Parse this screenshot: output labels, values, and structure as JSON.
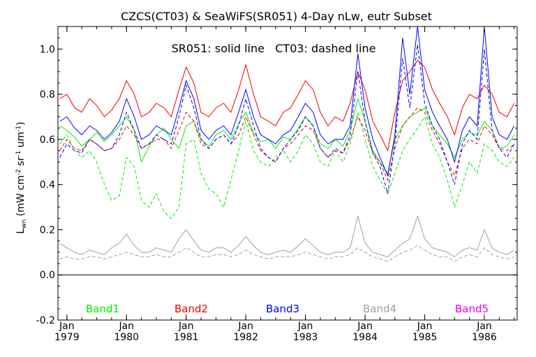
{
  "chart_data": {
    "type": "line",
    "title": "CZCS(CT03) & SeaWiFS(SR051) 4-Day nLw, eutr Subset",
    "subtitle": "SR051: solid line   CT03: dashed line",
    "ylabel_main": "L",
    "ylabel_sub": "wn",
    "ylabel_rest": " (mW cm",
    "ylabel_exp1": "-2",
    "ylabel_mid": " sr",
    "ylabel_exp2": "-1",
    "ylabel_end": " um",
    "ylabel_exp3": "-1",
    "ylabel_close": ")",
    "xlabel": "",
    "xlim": [
      1978.85,
      1986.55
    ],
    "ylim": [
      -0.2,
      1.1
    ],
    "yticks": [
      "-0.2",
      "0.0",
      "0.2",
      "0.4",
      "0.6",
      "0.8",
      "1.0"
    ],
    "ytick_values": [
      -0.2,
      0.0,
      0.2,
      0.4,
      0.6,
      0.8,
      1.0
    ],
    "xticks_month": [
      "Jan",
      "Jan",
      "Jan",
      "Jan",
      "Jan",
      "Jan",
      "Jan",
      "Jan"
    ],
    "xticks_year": [
      "1979",
      "1980",
      "1981",
      "1982",
      "1983",
      "1984",
      "1985",
      "1986"
    ],
    "xtick_values": [
      1979,
      1980,
      1981,
      1982,
      1983,
      1984,
      1985,
      1986
    ],
    "zero_line": 0.0,
    "legend": [
      {
        "name": "Band1",
        "color": "#00ee00"
      },
      {
        "name": "Band2",
        "color": "#ee0000"
      },
      {
        "name": "Band3",
        "color": "#0000ee"
      },
      {
        "name": "Band4",
        "color": "#a0a0a0"
      },
      {
        "name": "Band5",
        "color": "#ee00ee"
      }
    ],
    "series": [
      {
        "band": "Band1",
        "style": "solid",
        "color": "#00ee00",
        "x": [
          1978.88,
          1979.0,
          1979.13,
          1979.25,
          1979.38,
          1979.5,
          1979.63,
          1979.75,
          1979.88,
          1980.0,
          1980.13,
          1980.25,
          1980.38,
          1980.5,
          1980.63,
          1980.75,
          1980.88,
          1981.0,
          1981.13,
          1981.25,
          1981.38,
          1981.5,
          1981.63,
          1981.75,
          1981.88,
          1982.0,
          1982.13,
          1982.25,
          1982.38,
          1982.5,
          1982.63,
          1982.75,
          1982.88,
          1983.0,
          1983.13,
          1983.25,
          1983.38,
          1983.5,
          1983.63,
          1983.75,
          1983.88,
          1984.0,
          1984.13,
          1984.25,
          1984.38,
          1984.5,
          1984.63,
          1984.75,
          1984.88,
          1985.0,
          1985.13,
          1985.25,
          1985.38,
          1985.5,
          1985.63,
          1985.75,
          1985.88,
          1986.0,
          1986.13,
          1986.25,
          1986.38,
          1986.5
        ],
        "y": [
          0.66,
          0.64,
          0.61,
          0.57,
          0.6,
          0.63,
          0.59,
          0.62,
          0.66,
          0.7,
          0.64,
          0.5,
          0.57,
          0.62,
          0.65,
          0.6,
          0.56,
          0.66,
          0.68,
          0.6,
          0.57,
          0.62,
          0.64,
          0.6,
          0.67,
          0.72,
          0.63,
          0.59,
          0.6,
          0.56,
          0.61,
          0.6,
          0.65,
          0.7,
          0.66,
          0.58,
          0.56,
          0.6,
          0.57,
          0.64,
          0.78,
          0.68,
          0.55,
          0.5,
          0.45,
          0.6,
          0.66,
          0.7,
          0.72,
          0.74,
          0.66,
          0.62,
          0.58,
          0.52,
          0.6,
          0.63,
          0.62,
          0.68,
          0.64,
          0.56,
          0.57,
          0.62
        ]
      },
      {
        "band": "Band1",
        "style": "dashed",
        "color": "#00ee00",
        "x": [
          1978.88,
          1979.0,
          1979.13,
          1979.25,
          1979.38,
          1979.5,
          1979.63,
          1979.75,
          1979.88,
          1980.0,
          1980.13,
          1980.25,
          1980.38,
          1980.5,
          1980.63,
          1980.75,
          1980.88,
          1981.0,
          1981.13,
          1981.25,
          1981.38,
          1981.5,
          1981.63,
          1981.75,
          1981.88,
          1982.0,
          1982.13,
          1982.25,
          1982.38,
          1982.5,
          1982.63,
          1982.75,
          1982.88,
          1983.0,
          1983.13,
          1983.25,
          1983.38,
          1983.5,
          1983.63,
          1983.75,
          1983.88,
          1984.0,
          1984.13,
          1984.25,
          1984.38,
          1984.5,
          1984.63,
          1984.75,
          1984.88,
          1985.0,
          1985.13,
          1985.25,
          1985.38,
          1985.5,
          1985.63,
          1985.75,
          1985.88,
          1986.0,
          1986.13,
          1986.25,
          1986.38,
          1986.5
        ],
        "y": [
          0.58,
          0.62,
          0.55,
          0.52,
          0.55,
          0.5,
          0.4,
          0.33,
          0.35,
          0.52,
          0.48,
          0.33,
          0.3,
          0.36,
          0.28,
          0.25,
          0.3,
          0.58,
          0.6,
          0.45,
          0.38,
          0.36,
          0.3,
          0.42,
          0.55,
          0.68,
          0.55,
          0.5,
          0.48,
          0.52,
          0.55,
          0.5,
          0.55,
          0.62,
          0.58,
          0.5,
          0.48,
          0.55,
          0.5,
          0.58,
          0.72,
          0.6,
          0.48,
          0.42,
          0.36,
          0.45,
          0.55,
          0.6,
          0.65,
          0.7,
          0.58,
          0.52,
          0.42,
          0.3,
          0.4,
          0.5,
          0.45,
          0.58,
          0.55,
          0.5,
          0.48,
          0.52
        ]
      },
      {
        "band": "Band2",
        "style": "solid",
        "color": "#ee0000",
        "x": [
          1978.88,
          1979.0,
          1979.13,
          1979.25,
          1979.38,
          1979.5,
          1979.63,
          1979.75,
          1979.88,
          1980.0,
          1980.13,
          1980.25,
          1980.38,
          1980.5,
          1980.63,
          1980.75,
          1980.88,
          1981.0,
          1981.13,
          1981.25,
          1981.38,
          1981.5,
          1981.63,
          1981.75,
          1981.88,
          1982.0,
          1982.13,
          1982.25,
          1982.38,
          1982.5,
          1982.63,
          1982.75,
          1982.88,
          1983.0,
          1983.13,
          1983.25,
          1983.38,
          1983.5,
          1983.63,
          1983.75,
          1983.88,
          1984.0,
          1984.13,
          1984.25,
          1984.38,
          1984.5,
          1984.63,
          1984.75,
          1984.88,
          1985.0,
          1985.13,
          1985.25,
          1985.38,
          1985.5,
          1985.63,
          1985.75,
          1985.88,
          1986.0,
          1986.13,
          1986.25,
          1986.38,
          1986.5
        ],
        "y": [
          0.78,
          0.8,
          0.74,
          0.72,
          0.78,
          0.75,
          0.7,
          0.73,
          0.78,
          0.86,
          0.8,
          0.7,
          0.72,
          0.76,
          0.74,
          0.7,
          0.82,
          0.92,
          0.85,
          0.72,
          0.7,
          0.74,
          0.76,
          0.72,
          0.82,
          0.93,
          0.8,
          0.7,
          0.68,
          0.66,
          0.72,
          0.74,
          0.8,
          0.86,
          0.82,
          0.72,
          0.66,
          0.7,
          0.68,
          0.76,
          0.9,
          0.82,
          0.68,
          0.62,
          0.55,
          0.72,
          0.86,
          0.9,
          0.95,
          0.92,
          0.82,
          0.76,
          0.7,
          0.62,
          0.74,
          0.8,
          0.78,
          0.84,
          0.8,
          0.72,
          0.7,
          0.76
        ]
      },
      {
        "band": "Band2",
        "style": "dashed",
        "color": "#ee0000",
        "x": [
          1978.88,
          1979.0,
          1979.13,
          1979.25,
          1979.38,
          1979.5,
          1979.63,
          1979.75,
          1979.88,
          1980.0,
          1980.13,
          1980.25,
          1980.38,
          1980.5,
          1980.63,
          1980.75,
          1980.88,
          1981.0,
          1981.13,
          1981.25,
          1981.38,
          1981.5,
          1981.63,
          1981.75,
          1981.88,
          1982.0,
          1982.13,
          1982.25,
          1982.38,
          1982.5,
          1982.63,
          1982.75,
          1982.88,
          1983.0,
          1983.13,
          1983.25,
          1983.38,
          1983.5,
          1983.63,
          1983.75,
          1983.88,
          1984.0,
          1984.13,
          1984.25,
          1984.38,
          1984.5,
          1984.63,
          1984.75,
          1984.88,
          1985.0,
          1985.13,
          1985.25,
          1985.38,
          1985.5,
          1985.63,
          1985.75,
          1985.88,
          1986.0,
          1986.13,
          1986.25,
          1986.38,
          1986.5
        ],
        "y": [
          0.55,
          0.6,
          0.56,
          0.55,
          0.6,
          0.58,
          0.55,
          0.56,
          0.6,
          0.66,
          0.62,
          0.56,
          0.58,
          0.6,
          0.6,
          0.56,
          0.64,
          0.72,
          0.68,
          0.58,
          0.56,
          0.6,
          0.62,
          0.58,
          0.62,
          0.7,
          0.62,
          0.55,
          0.52,
          0.5,
          0.56,
          0.58,
          0.62,
          0.66,
          0.64,
          0.56,
          0.52,
          0.55,
          0.54,
          0.6,
          0.7,
          0.64,
          0.54,
          0.5,
          0.42,
          0.56,
          0.66,
          0.7,
          0.74,
          0.72,
          0.64,
          0.58,
          0.5,
          0.44,
          0.56,
          0.6,
          0.58,
          0.66,
          0.62,
          0.56,
          0.55,
          0.58
        ]
      },
      {
        "band": "Band3",
        "style": "solid",
        "color": "#0000ee",
        "x": [
          1978.88,
          1979.0,
          1979.13,
          1979.25,
          1979.38,
          1979.5,
          1979.63,
          1979.75,
          1979.88,
          1980.0,
          1980.13,
          1980.25,
          1980.38,
          1980.5,
          1980.63,
          1980.75,
          1980.88,
          1981.0,
          1981.13,
          1981.25,
          1981.38,
          1981.5,
          1981.63,
          1981.75,
          1981.88,
          1982.0,
          1982.13,
          1982.25,
          1982.38,
          1982.5,
          1982.63,
          1982.75,
          1982.88,
          1983.0,
          1983.13,
          1983.25,
          1983.38,
          1983.5,
          1983.63,
          1983.75,
          1983.88,
          1984.0,
          1984.13,
          1984.25,
          1984.38,
          1984.5,
          1984.63,
          1984.75,
          1984.88,
          1985.0,
          1985.13,
          1985.25,
          1985.38,
          1985.5,
          1985.63,
          1985.75,
          1985.88,
          1986.0,
          1986.13,
          1986.25,
          1986.38,
          1986.5
        ],
        "y": [
          0.68,
          0.7,
          0.65,
          0.62,
          0.66,
          0.64,
          0.6,
          0.63,
          0.68,
          0.78,
          0.7,
          0.6,
          0.62,
          0.66,
          0.64,
          0.62,
          0.74,
          0.86,
          0.78,
          0.64,
          0.6,
          0.64,
          0.66,
          0.62,
          0.72,
          0.82,
          0.7,
          0.62,
          0.6,
          0.58,
          0.62,
          0.64,
          0.7,
          0.76,
          0.72,
          0.62,
          0.58,
          0.6,
          0.6,
          0.66,
          0.98,
          0.74,
          0.6,
          0.52,
          0.44,
          0.62,
          1.05,
          0.8,
          1.1,
          0.82,
          0.72,
          0.66,
          0.6,
          0.5,
          0.64,
          0.7,
          0.66,
          1.1,
          0.7,
          0.62,
          0.6,
          0.66
        ]
      },
      {
        "band": "Band3",
        "style": "dashed",
        "color": "#0000ee",
        "x": [
          1978.88,
          1979.0,
          1979.13,
          1979.25,
          1979.38,
          1979.5,
          1979.63,
          1979.75,
          1979.88,
          1980.0,
          1980.13,
          1980.25,
          1980.38,
          1980.5,
          1980.63,
          1980.75,
          1980.88,
          1981.0,
          1981.13,
          1981.25,
          1981.38,
          1981.5,
          1981.63,
          1981.75,
          1981.88,
          1982.0,
          1982.13,
          1982.25,
          1982.38,
          1982.5,
          1982.63,
          1982.75,
          1982.88,
          1983.0,
          1983.13,
          1983.25,
          1983.38,
          1983.5,
          1983.63,
          1983.75,
          1983.88,
          1984.0,
          1984.13,
          1984.25,
          1984.38,
          1984.5,
          1984.63,
          1984.75,
          1984.88,
          1985.0,
          1985.13,
          1985.25,
          1985.38,
          1985.5,
          1985.63,
          1985.75,
          1985.88,
          1986.0,
          1986.13,
          1986.25,
          1986.38,
          1986.5
        ],
        "y": [
          0.52,
          0.58,
          0.55,
          0.54,
          0.6,
          0.58,
          0.55,
          0.56,
          0.62,
          0.72,
          0.64,
          0.56,
          0.58,
          0.62,
          0.6,
          0.58,
          0.7,
          0.84,
          0.74,
          0.6,
          0.56,
          0.6,
          0.62,
          0.58,
          0.66,
          0.78,
          0.66,
          0.56,
          0.52,
          0.5,
          0.56,
          0.6,
          0.64,
          0.7,
          0.66,
          0.56,
          0.52,
          0.56,
          0.54,
          0.62,
          0.9,
          0.68,
          0.54,
          0.48,
          0.36,
          0.58,
          0.96,
          0.74,
          1.02,
          0.76,
          0.66,
          0.6,
          0.5,
          0.4,
          0.58,
          0.64,
          0.6,
          1.0,
          0.64,
          0.56,
          0.52,
          0.58
        ]
      },
      {
        "band": "Band4",
        "style": "solid",
        "color": "#a0a0a0",
        "x": [
          1978.88,
          1979.0,
          1979.13,
          1979.25,
          1979.38,
          1979.5,
          1979.63,
          1979.75,
          1979.88,
          1980.0,
          1980.13,
          1980.25,
          1980.38,
          1980.5,
          1980.63,
          1980.75,
          1980.88,
          1981.0,
          1981.13,
          1981.25,
          1981.38,
          1981.5,
          1981.63,
          1981.75,
          1981.88,
          1982.0,
          1982.13,
          1982.25,
          1982.38,
          1982.5,
          1982.63,
          1982.75,
          1982.88,
          1983.0,
          1983.13,
          1983.25,
          1983.38,
          1983.5,
          1983.63,
          1983.75,
          1983.88,
          1984.0,
          1984.13,
          1984.25,
          1984.38,
          1984.5,
          1984.63,
          1984.75,
          1984.88,
          1985.0,
          1985.13,
          1985.25,
          1985.38,
          1985.5,
          1985.63,
          1985.75,
          1985.88,
          1986.0,
          1986.13,
          1986.25,
          1986.38,
          1986.5
        ],
        "y": [
          0.14,
          0.12,
          0.1,
          0.09,
          0.11,
          0.1,
          0.09,
          0.12,
          0.14,
          0.18,
          0.13,
          0.1,
          0.1,
          0.12,
          0.11,
          0.1,
          0.16,
          0.2,
          0.15,
          0.11,
          0.1,
          0.12,
          0.12,
          0.1,
          0.13,
          0.17,
          0.13,
          0.1,
          0.09,
          0.1,
          0.11,
          0.1,
          0.13,
          0.16,
          0.13,
          0.1,
          0.09,
          0.1,
          0.1,
          0.12,
          0.26,
          0.14,
          0.1,
          0.09,
          0.08,
          0.11,
          0.14,
          0.16,
          0.26,
          0.16,
          0.12,
          0.11,
          0.1,
          0.08,
          0.11,
          0.12,
          0.11,
          0.2,
          0.12,
          0.1,
          0.09,
          0.11
        ]
      },
      {
        "band": "Band4",
        "style": "dashed",
        "color": "#a0a0a0",
        "x": [
          1978.88,
          1979.0,
          1979.13,
          1979.25,
          1979.38,
          1979.5,
          1979.63,
          1979.75,
          1979.88,
          1980.0,
          1980.13,
          1980.25,
          1980.38,
          1980.5,
          1980.63,
          1980.75,
          1980.88,
          1981.0,
          1981.13,
          1981.25,
          1981.38,
          1981.5,
          1981.63,
          1981.75,
          1981.88,
          1982.0,
          1982.13,
          1982.25,
          1982.38,
          1982.5,
          1982.63,
          1982.75,
          1982.88,
          1983.0,
          1983.13,
          1983.25,
          1983.38,
          1983.5,
          1983.63,
          1983.75,
          1983.88,
          1984.0,
          1984.13,
          1984.25,
          1984.38,
          1984.5,
          1984.63,
          1984.75,
          1984.88,
          1985.0,
          1985.13,
          1985.25,
          1985.38,
          1985.5,
          1985.63,
          1985.75,
          1985.88,
          1986.0,
          1986.13,
          1986.25,
          1986.38,
          1986.5
        ],
        "y": [
          0.07,
          0.08,
          0.07,
          0.07,
          0.08,
          0.08,
          0.07,
          0.08,
          0.09,
          0.1,
          0.09,
          0.08,
          0.08,
          0.09,
          0.08,
          0.08,
          0.1,
          0.12,
          0.1,
          0.08,
          0.08,
          0.09,
          0.09,
          0.08,
          0.09,
          0.11,
          0.09,
          0.08,
          0.07,
          0.08,
          0.08,
          0.08,
          0.09,
          0.1,
          0.09,
          0.08,
          0.07,
          0.08,
          0.08,
          0.09,
          0.12,
          0.1,
          0.08,
          0.07,
          0.06,
          0.08,
          0.1,
          0.11,
          0.13,
          0.11,
          0.09,
          0.08,
          0.08,
          0.06,
          0.08,
          0.09,
          0.08,
          0.12,
          0.09,
          0.08,
          0.07,
          0.08
        ]
      }
    ]
  }
}
